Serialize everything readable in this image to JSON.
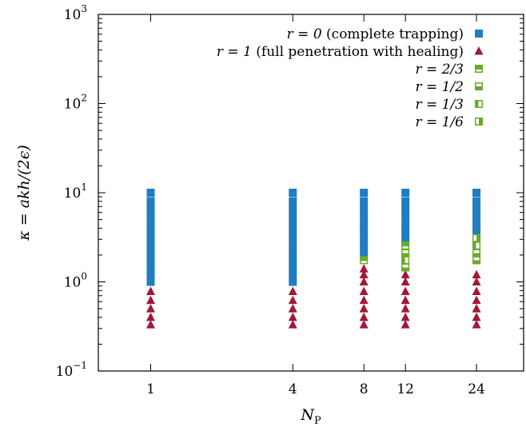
{
  "chart_data": {
    "type": "scatter",
    "y_scale": "log",
    "ylim": [
      0.1,
      1000
    ],
    "x_scale": "log",
    "xlim": [
      0.6,
      38
    ],
    "xticks": [
      1,
      4,
      8,
      12,
      24
    ],
    "xtick_labels": [
      "1",
      "4",
      "8",
      "12",
      "24"
    ],
    "yticks": [
      {
        "value": 0.1,
        "base": "10",
        "exp": "−1"
      },
      {
        "value": 1,
        "base": "10",
        "exp": "0"
      },
      {
        "value": 10,
        "base": "10",
        "exp": "1"
      },
      {
        "value": 100,
        "base": "10",
        "exp": "2"
      },
      {
        "value": 1000,
        "base": "10",
        "exp": "3"
      }
    ],
    "xlabel": "N_P",
    "xlabel_main": "N",
    "xlabel_sub": "P",
    "ylabel": "κ = akh/(2ϵ)",
    "legend_position": "top-right",
    "grid": false,
    "series": [
      {
        "name": "r = 0 (complete trapping)",
        "name_math": "r = 0",
        "name_rest": " (complete trapping)",
        "marker": "square-filled",
        "color": "#1f7dc1",
        "points": [
          {
            "x": 1,
            "y": 1.0
          },
          {
            "x": 1,
            "y": 1.2
          },
          {
            "x": 1,
            "y": 1.45
          },
          {
            "x": 1,
            "y": 1.75
          },
          {
            "x": 1,
            "y": 2.1
          },
          {
            "x": 1,
            "y": 2.55
          },
          {
            "x": 1,
            "y": 3.1
          },
          {
            "x": 1,
            "y": 3.75
          },
          {
            "x": 1,
            "y": 4.5
          },
          {
            "x": 1,
            "y": 5.5
          },
          {
            "x": 1,
            "y": 6.65
          },
          {
            "x": 1,
            "y": 8.05
          },
          {
            "x": 1,
            "y": 10.0
          },
          {
            "x": 4,
            "y": 1.0
          },
          {
            "x": 4,
            "y": 1.2
          },
          {
            "x": 4,
            "y": 1.45
          },
          {
            "x": 4,
            "y": 1.75
          },
          {
            "x": 4,
            "y": 2.1
          },
          {
            "x": 4,
            "y": 2.55
          },
          {
            "x": 4,
            "y": 3.1
          },
          {
            "x": 4,
            "y": 3.75
          },
          {
            "x": 4,
            "y": 4.5
          },
          {
            "x": 4,
            "y": 5.5
          },
          {
            "x": 4,
            "y": 6.65
          },
          {
            "x": 4,
            "y": 8.05
          },
          {
            "x": 4,
            "y": 10.0
          },
          {
            "x": 8,
            "y": 2.1
          },
          {
            "x": 8,
            "y": 2.55
          },
          {
            "x": 8,
            "y": 3.1
          },
          {
            "x": 8,
            "y": 3.75
          },
          {
            "x": 8,
            "y": 4.5
          },
          {
            "x": 8,
            "y": 5.5
          },
          {
            "x": 8,
            "y": 6.65
          },
          {
            "x": 8,
            "y": 8.05
          },
          {
            "x": 8,
            "y": 10.0
          },
          {
            "x": 12,
            "y": 3.1
          },
          {
            "x": 12,
            "y": 3.75
          },
          {
            "x": 12,
            "y": 4.5
          },
          {
            "x": 12,
            "y": 5.5
          },
          {
            "x": 12,
            "y": 6.65
          },
          {
            "x": 12,
            "y": 8.05
          },
          {
            "x": 12,
            "y": 10.0
          },
          {
            "x": 24,
            "y": 3.75
          },
          {
            "x": 24,
            "y": 4.5
          },
          {
            "x": 24,
            "y": 5.5
          },
          {
            "x": 24,
            "y": 6.65
          },
          {
            "x": 24,
            "y": 8.05
          },
          {
            "x": 24,
            "y": 10.0
          }
        ]
      },
      {
        "name": "r = 1 (full penetration with healing)",
        "name_math": "r = 1",
        "name_rest": " (full penetration with healing)",
        "marker": "triangle-filled",
        "color": "#a3173a",
        "points": [
          {
            "x": 1,
            "y": 0.33
          },
          {
            "x": 1,
            "y": 0.4
          },
          {
            "x": 1,
            "y": 0.5
          },
          {
            "x": 1,
            "y": 0.62
          },
          {
            "x": 1,
            "y": 0.78
          },
          {
            "x": 4,
            "y": 0.33
          },
          {
            "x": 4,
            "y": 0.4
          },
          {
            "x": 4,
            "y": 0.5
          },
          {
            "x": 4,
            "y": 0.62
          },
          {
            "x": 4,
            "y": 0.78
          },
          {
            "x": 8,
            "y": 0.33
          },
          {
            "x": 8,
            "y": 0.4
          },
          {
            "x": 8,
            "y": 0.5
          },
          {
            "x": 8,
            "y": 0.62
          },
          {
            "x": 8,
            "y": 0.78
          },
          {
            "x": 8,
            "y": 1.0
          },
          {
            "x": 8,
            "y": 1.2
          },
          {
            "x": 8,
            "y": 1.4
          },
          {
            "x": 12,
            "y": 0.33
          },
          {
            "x": 12,
            "y": 0.4
          },
          {
            "x": 12,
            "y": 0.5
          },
          {
            "x": 12,
            "y": 0.62
          },
          {
            "x": 12,
            "y": 0.78
          },
          {
            "x": 12,
            "y": 1.0
          },
          {
            "x": 12,
            "y": 1.2
          },
          {
            "x": 24,
            "y": 0.33
          },
          {
            "x": 24,
            "y": 0.4
          },
          {
            "x": 24,
            "y": 0.5
          },
          {
            "x": 24,
            "y": 0.62
          },
          {
            "x": 24,
            "y": 0.78
          },
          {
            "x": 24,
            "y": 1.0
          },
          {
            "x": 24,
            "y": 1.2
          }
        ]
      },
      {
        "name": "r = 2/3",
        "name_math": "r = 2/3",
        "name_rest": "",
        "marker": "square-fill-top",
        "color": "#6aaa2a",
        "points": [
          {
            "x": 8,
            "y": 1.75
          },
          {
            "x": 12,
            "y": 2.55
          }
        ]
      },
      {
        "name": "r = 1/2",
        "name_math": "r = 1/2",
        "name_rest": "",
        "marker": "square-fill-bottom",
        "color": "#6aaa2a",
        "points": [
          {
            "x": 12,
            "y": 1.45
          },
          {
            "x": 12,
            "y": 2.1
          },
          {
            "x": 24,
            "y": 1.75
          },
          {
            "x": 24,
            "y": 2.1
          }
        ]
      },
      {
        "name": "r = 1/3",
        "name_math": "r = 1/3",
        "name_rest": "",
        "marker": "square-fill-left",
        "color": "#6aaa2a",
        "points": [
          {
            "x": 12,
            "y": 1.75
          },
          {
            "x": 24,
            "y": 2.55
          }
        ]
      },
      {
        "name": "r = 1/6",
        "name_math": "r = 1/6",
        "name_rest": "",
        "marker": "square-fill-right",
        "color": "#6aaa2a",
        "points": [
          {
            "x": 24,
            "y": 3.1
          }
        ]
      }
    ]
  }
}
